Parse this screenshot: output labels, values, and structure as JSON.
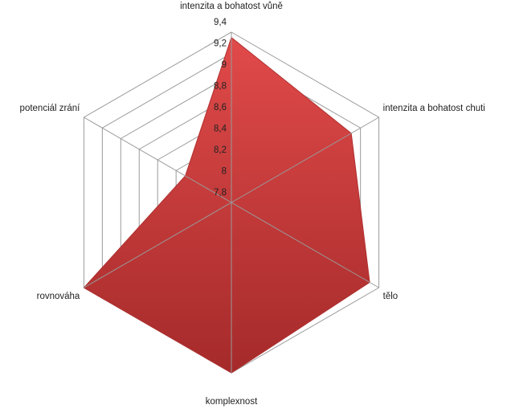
{
  "chart_data": {
    "type": "radar",
    "categories": [
      "intenzita a bohatost vůně",
      "intenzita a bohatost chuti",
      "tělo",
      "komplexnost",
      "rovnováha",
      "potenciál zrání"
    ],
    "values": [
      9.35,
      9.1,
      9.3,
      9.4,
      9.4,
      8.3
    ],
    "color": "#c83434",
    "ylim": [
      7.8,
      9.4
    ],
    "yticks": [
      {
        "value": 7.8,
        "label": "7,8"
      },
      8,
      {
        "value": 8.2,
        "label": "8,2"
      },
      {
        "value": 8.4,
        "label": "8,4"
      },
      {
        "value": 8.6,
        "label": "8,6"
      },
      {
        "value": 8.8,
        "label": "8,8"
      },
      9,
      {
        "value": 9.2,
        "label": "9,2"
      },
      {
        "value": 9.4,
        "label": "9,4"
      }
    ],
    "grid": true
  }
}
